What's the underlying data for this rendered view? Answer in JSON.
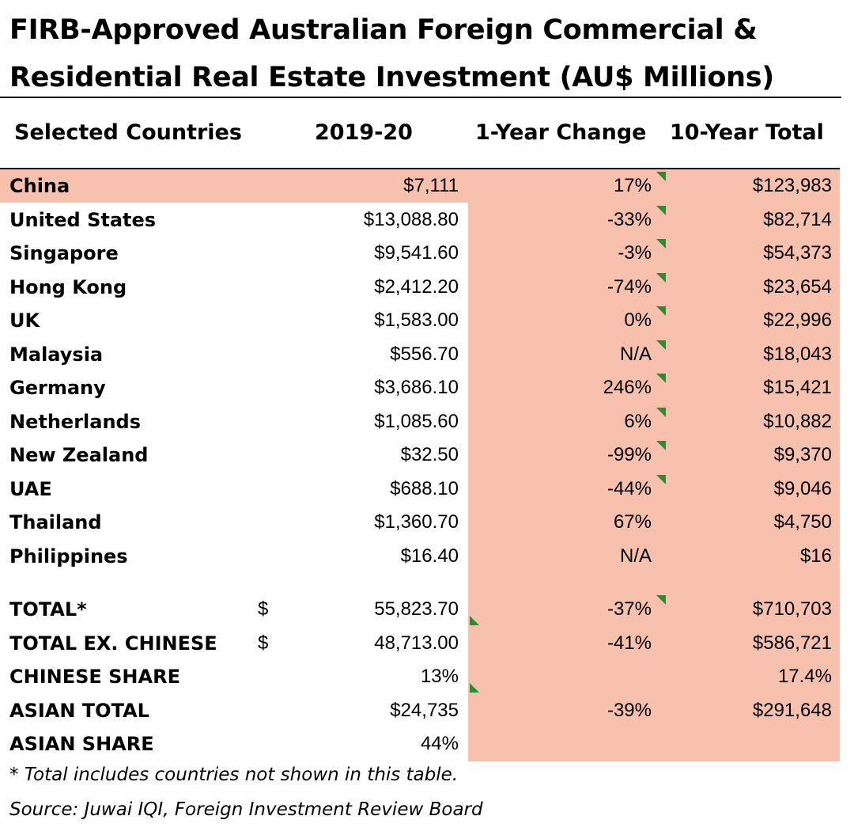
{
  "title_line1": "FIRB-Approved Australian Foreign Commercial &",
  "title_line2": "Residential Real Estate Investment (AU$ Millions)",
  "headers": {
    "country": "Selected Countries",
    "year": "2019-20",
    "change": "1-Year Change",
    "total": "10-Year Total"
  },
  "shade_color": "#f8c1ad",
  "flag_color": "#2e8b2e",
  "rows": [
    {
      "name": "China",
      "year": "$7,111",
      "change": "17%",
      "total": "$123,983"
    },
    {
      "name": "United States",
      "year": "$13,088.80",
      "change": "-33%",
      "total": "$82,714"
    },
    {
      "name": "Singapore",
      "year": "$9,541.60",
      "change": "-3%",
      "total": "$54,373"
    },
    {
      "name": "Hong Kong",
      "year": "$2,412.20",
      "change": "-74%",
      "total": "$23,654"
    },
    {
      "name": "UK",
      "year": "$1,583.00",
      "change": "0%",
      "total": "$22,996"
    },
    {
      "name": "Malaysia",
      "year": "$556.70",
      "change": "N/A",
      "total": "$18,043"
    },
    {
      "name": "Germany",
      "year": "$3,686.10",
      "change": "246%",
      "total": "$15,421"
    },
    {
      "name": "Netherlands",
      "year": "$1,085.60",
      "change": "6%",
      "total": "$10,882"
    },
    {
      "name": "New Zealand",
      "year": "$32.50",
      "change": "-99%",
      "total": "$9,370"
    },
    {
      "name": "UAE",
      "year": "$688.10",
      "change": "-44%",
      "total": "$9,046"
    },
    {
      "name": "Thailand",
      "year": "$1,360.70",
      "change": "67%",
      "total": "$4,750"
    },
    {
      "name": "Philippines",
      "year": "$16.40",
      "change": "N/A",
      "total": "$16"
    }
  ],
  "summary": [
    {
      "name": "TOTAL*",
      "dollar": "$",
      "year": "55,823.70",
      "change": "-37%",
      "total": "$710,703"
    },
    {
      "name": "TOTAL EX. CHINESE",
      "dollar": "$",
      "year": "48,713.00",
      "change": "-41%",
      "total": "$586,721"
    },
    {
      "name": "CHINESE SHARE",
      "dollar": "",
      "year": "13%",
      "change": "",
      "total": "17.4%"
    },
    {
      "name": "ASIAN TOTAL",
      "dollar": "",
      "year": "$24,735",
      "change": "-39%",
      "total": "$291,648"
    },
    {
      "name": "ASIAN SHARE",
      "dollar": "",
      "year": "44%",
      "change": "",
      "total": ""
    }
  ],
  "footnote1": "* Total includes countries not shown in this table.",
  "footnote2": "Source: Juwai IQI, Foreign Investment Review Board"
}
